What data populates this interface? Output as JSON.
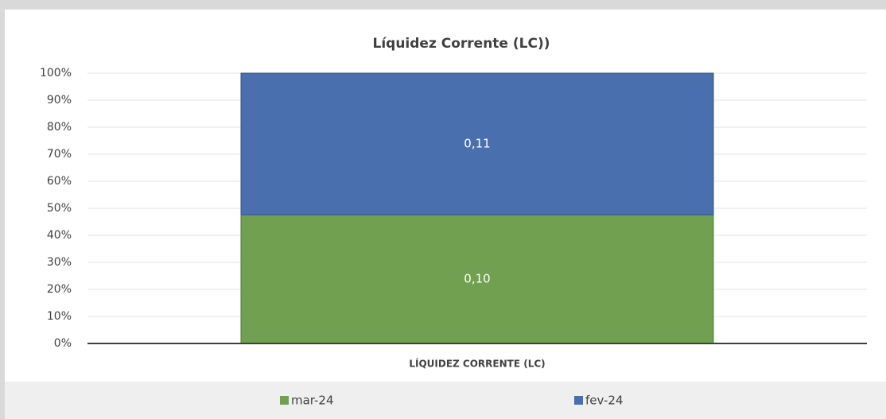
{
  "chart_data": {
    "type": "bar",
    "stacking": "percent",
    "title": "Líquidez Corrente (LC))",
    "categories": [
      "LÍQUIDEZ CORRENTE (LC)"
    ],
    "series": [
      {
        "name": "mar-24",
        "color": "#70a050",
        "values": [
          0.1
        ],
        "value_labels": [
          "0,10"
        ]
      },
      {
        "name": "fev-24",
        "color": "#4a6fae",
        "values": [
          0.11
        ],
        "value_labels": [
          "0,11"
        ]
      }
    ],
    "ylim": [
      0,
      100
    ],
    "yticks": [
      {
        "value": 0,
        "label": "0%"
      },
      {
        "value": 10,
        "label": "10%"
      },
      {
        "value": 20,
        "label": "20%"
      },
      {
        "value": 30,
        "label": "30%"
      },
      {
        "value": 40,
        "label": "40%"
      },
      {
        "value": 50,
        "label": "50%"
      },
      {
        "value": 60,
        "label": "60%"
      },
      {
        "value": 70,
        "label": "70%"
      },
      {
        "value": 80,
        "label": "80%"
      },
      {
        "value": 90,
        "label": "90%"
      },
      {
        "value": 100,
        "label": "100%"
      }
    ],
    "grid": true,
    "legend": "bottom"
  }
}
